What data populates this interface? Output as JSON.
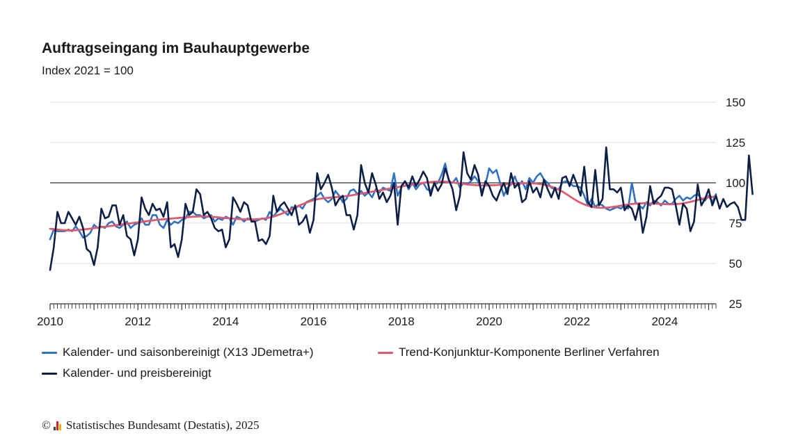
{
  "title": "Auftragseingang im Bauhauptgewerbe",
  "subtitle": "Index 2021 = 100",
  "footer": {
    "copyright": "©",
    "text": "Statistisches Bundesamt (Destatis), 2025"
  },
  "colors": {
    "saison": "#2f72c4",
    "trend": "#e05a6d",
    "preis": "#0d1f44",
    "grid": "#dddddd",
    "reference": "#333333"
  },
  "chart_data": {
    "type": "line",
    "title": "Auftragseingang im Bauhauptgewerbe",
    "ylabel": "Index 2021 = 100",
    "ylim": [
      25,
      150
    ],
    "yticks": [
      "25",
      "50",
      "75",
      "100",
      "125",
      "150"
    ],
    "xticks": [
      "2010",
      "2012",
      "2014",
      "2016",
      "2018",
      "2020",
      "2022",
      "2024"
    ],
    "xlim": [
      "2010-01",
      "2025-03"
    ],
    "reference_line": 100,
    "grid": true,
    "legend_position": "bottom",
    "series": [
      {
        "name": "Kalender- und saisonbereinigt (X13 JDemetra+)",
        "color": "#2f72c4",
        "values": [
          65,
          71,
          70,
          70,
          70,
          71,
          70,
          73,
          70,
          66,
          67,
          69,
          74,
          72,
          73,
          72,
          75,
          76,
          73,
          72,
          74,
          76,
          72,
          74,
          75,
          78,
          74,
          74,
          80,
          80,
          74,
          72,
          77,
          74,
          76,
          75,
          77,
          78,
          82,
          82,
          80,
          80,
          78,
          79,
          80,
          76,
          78,
          77,
          79,
          78,
          74,
          79,
          78,
          76,
          78,
          77,
          76,
          77,
          78,
          77,
          82,
          79,
          82,
          84,
          82,
          80,
          85,
          84,
          86,
          84,
          88,
          89,
          90,
          92,
          94,
          90,
          88,
          90,
          95,
          92,
          88,
          90,
          95,
          96,
          93,
          95,
          92,
          94,
          91,
          96,
          94,
          97,
          96,
          95,
          106,
          92,
          97,
          101,
          96,
          100,
          96,
          99,
          100,
          96,
          95,
          99,
          100,
          105,
          112,
          101,
          100,
          103,
          97,
          100,
          99,
          101,
          104,
          101,
          95,
          99,
          109,
          106,
          108,
          100,
          92,
          97,
          99,
          104,
          98,
          101,
          96,
          103,
          100,
          104,
          106,
          102,
          100,
          97,
          96,
          96,
          100,
          101,
          100,
          98,
          98,
          97,
          92,
          86,
          90,
          85,
          87,
          86,
          84,
          83,
          84,
          85,
          84,
          86,
          84,
          100,
          88,
          86,
          84,
          88,
          86,
          89,
          88,
          86,
          89,
          87,
          87,
          90,
          92,
          89,
          91,
          90,
          92,
          93,
          90,
          89,
          92,
          88,
          93
        ]
      },
      {
        "name": "Trend-Konjunktur-Komponente Berliner Verfahren",
        "color": "#e05a6d",
        "values": [
          71.5,
          71.3,
          71.0,
          70.8,
          70.6,
          70.5,
          70.5,
          70.6,
          70.8,
          71.0,
          71.3,
          71.6,
          71.9,
          72.2,
          72.5,
          72.8,
          73.1,
          73.4,
          73.7,
          74.0,
          74.3,
          74.6,
          74.9,
          75.2,
          75.5,
          75.8,
          76.1,
          76.4,
          76.7,
          77.0,
          77.2,
          77.4,
          77.6,
          77.8,
          78.0,
          78.2,
          78.4,
          78.6,
          78.8,
          79.0,
          79.1,
          79.2,
          79.2,
          79.1,
          79.0,
          78.8,
          78.6,
          78.4,
          78.2,
          78.0,
          77.8,
          77.6,
          77.5,
          77.4,
          77.3,
          77.3,
          77.4,
          77.5,
          77.7,
          78.0,
          78.5,
          79.1,
          79.8,
          80.6,
          81.5,
          82.5,
          83.6,
          84.7,
          85.8,
          86.8,
          87.7,
          88.5,
          89.2,
          89.8,
          90.2,
          90.5,
          90.7,
          90.9,
          91.1,
          91.3,
          91.5,
          91.8,
          92.1,
          92.5,
          92.9,
          93.3,
          93.7,
          94.1,
          94.5,
          94.9,
          95.3,
          95.7,
          96.1,
          96.5,
          96.9,
          97.3,
          97.7,
          98.1,
          98.5,
          98.9,
          99.3,
          99.7,
          100.0,
          100.3,
          100.5,
          100.7,
          100.8,
          100.8,
          100.7,
          100.5,
          100.2,
          99.9,
          99.6,
          99.3,
          99.0,
          98.8,
          98.6,
          98.5,
          98.4,
          98.4,
          98.4,
          98.5,
          98.6,
          98.8,
          99.0,
          99.2,
          99.4,
          99.6,
          99.7,
          99.8,
          99.8,
          99.8,
          99.7,
          99.5,
          99.2,
          98.8,
          98.3,
          97.6,
          96.8,
          95.8,
          94.6,
          93.2,
          91.7,
          90.2,
          88.8,
          87.6,
          86.6,
          85.8,
          85.2,
          84.8,
          84.6,
          84.5,
          84.6,
          84.8,
          85.1,
          85.4,
          85.8,
          86.2,
          86.6,
          86.9,
          87.1,
          87.2,
          87.3,
          87.3,
          87.2,
          87.1,
          87.0,
          86.9,
          86.8,
          86.7,
          86.7,
          86.8,
          87.0,
          87.3,
          87.7,
          88.2,
          88.8,
          89.4,
          90.0,
          90.6,
          91.0,
          91.3,
          91.5
        ]
      },
      {
        "name": "Kalender- und preisbereinigt",
        "color": "#0d1f44",
        "values": [
          46,
          60,
          82,
          75,
          75,
          82,
          78,
          74,
          79,
          72,
          59,
          57,
          49,
          60,
          84,
          78,
          79,
          86,
          86,
          74,
          80,
          67,
          65,
          55,
          65,
          91,
          84,
          80,
          87,
          83,
          84,
          79,
          88,
          60,
          62,
          54,
          65,
          87,
          80,
          82,
          96,
          93,
          80,
          82,
          78,
          72,
          70,
          71,
          60,
          65,
          91,
          87,
          82,
          88,
          86,
          76,
          76,
          64,
          65,
          62,
          67,
          92,
          82,
          86,
          88,
          84,
          80,
          86,
          74,
          76,
          80,
          69,
          77,
          106,
          96,
          100,
          105,
          97,
          86,
          90,
          92,
          80,
          80,
          71,
          80,
          111,
          100,
          94,
          106,
          99,
          90,
          94,
          88,
          92,
          100,
          74,
          98,
          101,
          97,
          104,
          98,
          102,
          107,
          103,
          92,
          100,
          95,
          99,
          109,
          102,
          96,
          83,
          92,
          119,
          106,
          102,
          111,
          105,
          92,
          101,
          98,
          92,
          89,
          95,
          100,
          93,
          106,
          97,
          100,
          88,
          90,
          101,
          94,
          97,
          91,
          102,
          96,
          91,
          97,
          90,
          103,
          104,
          98,
          105,
          99,
          92,
          110,
          88,
          85,
          108,
          86,
          90,
          122,
          96,
          96,
          94,
          97,
          83,
          86,
          84,
          77,
          87,
          69,
          79,
          98,
          87,
          90,
          92,
          97,
          97,
          96,
          86,
          74,
          87,
          84,
          70,
          76,
          99,
          86,
          90,
          96,
          86,
          92,
          84,
          90,
          85,
          87,
          88,
          85,
          77,
          77,
          117,
          93
        ]
      }
    ]
  },
  "legend": {
    "items": [
      {
        "label": "Kalender- und saisonbereinigt (X13 JDemetra+)",
        "color": "#2f72c4"
      },
      {
        "label": "Trend-Konjunktur-Komponente Berliner Verfahren",
        "color": "#e05a6d"
      },
      {
        "label": "Kalender- und preisbereinigt",
        "color": "#0d1f44"
      }
    ]
  }
}
